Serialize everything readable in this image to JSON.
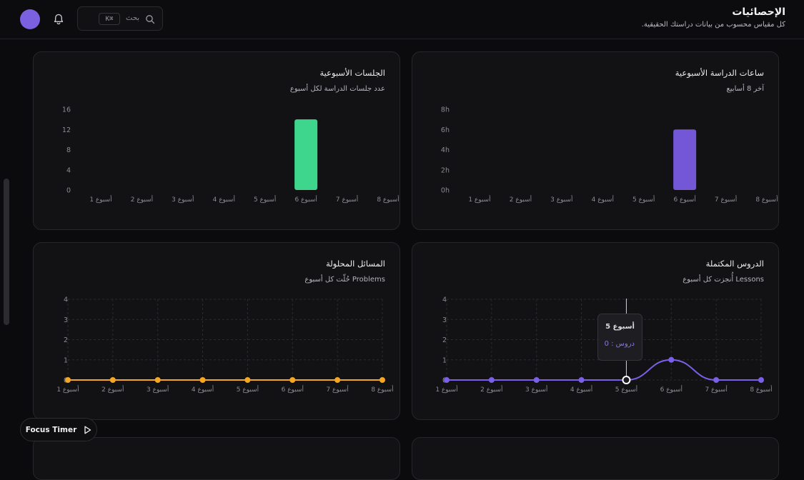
{
  "header": {
    "title": "الإحصائيات",
    "subtitle": "كل مقياس محسوب من بيانات دراستك الحقيقية."
  },
  "search": {
    "placeholder": "بحث",
    "shortcut": "K⌘"
  },
  "focus_timer": {
    "label": "Focus Timer"
  },
  "colors": {
    "purple": "#7457d6",
    "green": "#3dd68c",
    "orange": "#f5a623",
    "line_purple": "#7b5fe6"
  },
  "cards": {
    "study_hours": {
      "title": "ساعات الدراسة الأسبوعية",
      "subtitle": "آخر 8 أسابيع"
    },
    "sessions": {
      "title": "الجلسات الأسبوعية",
      "subtitle": "عدد جلسات الدراسة لكل أسبوع"
    },
    "lessons": {
      "title": "الدروس المكتملة",
      "subtitle": "Lessons أُنجزت كل أسبوع"
    },
    "problems": {
      "title": "المسائل المحلولة",
      "subtitle": "Problems حُلّت كل أسبوع"
    }
  },
  "tooltip": {
    "title": "أسبوع 5",
    "value": "دروس : 0"
  },
  "chart_data": [
    {
      "id": "study_hours",
      "type": "bar",
      "categories": [
        "أسبوع 1",
        "أسبوع 2",
        "أسبوع 3",
        "أسبوع 4",
        "أسبوع 5",
        "أسبوع 6",
        "أسبوع 7",
        "أسبوع 8"
      ],
      "values": [
        0,
        0,
        0,
        0,
        0,
        6,
        0,
        0
      ],
      "yticks": [
        "0h",
        "2h",
        "4h",
        "6h",
        "8h"
      ],
      "ylim": [
        0,
        8
      ],
      "color": "#7457d6"
    },
    {
      "id": "sessions",
      "type": "bar",
      "categories": [
        "أسبوع 1",
        "أسبوع 2",
        "أسبوع 3",
        "أسبوع 4",
        "أسبوع 5",
        "أسبوع 6",
        "أسبوع 7",
        "أسبوع 8"
      ],
      "values": [
        0,
        0,
        0,
        0,
        0,
        14,
        0,
        0
      ],
      "yticks": [
        "0",
        "4",
        "8",
        "12",
        "16"
      ],
      "ylim": [
        0,
        16
      ],
      "color": "#3dd68c"
    },
    {
      "id": "lessons",
      "type": "line",
      "categories": [
        "أسبوع 1",
        "أسبوع 2",
        "أسبوع 3",
        "أسبوع 4",
        "أسبوع 5",
        "أسبوع 6",
        "أسبوع 7",
        "أسبوع 8"
      ],
      "values": [
        0,
        0,
        0,
        0,
        0,
        1,
        0,
        0
      ],
      "yticks": [
        "0",
        "1",
        "2",
        "3",
        "4"
      ],
      "ylim": [
        0,
        4
      ],
      "color": "#7b5fe6",
      "grid": true,
      "active_index": 4
    },
    {
      "id": "problems",
      "type": "line",
      "categories": [
        "أسبوع 1",
        "أسبوع 2",
        "أسبوع 3",
        "أسبوع 4",
        "أسبوع 5",
        "أسبوع 6",
        "أسبوع 7",
        "أسبوع 8"
      ],
      "values": [
        0,
        0,
        0,
        0,
        0,
        0,
        0,
        0
      ],
      "yticks": [
        "0",
        "1",
        "2",
        "3",
        "4"
      ],
      "ylim": [
        0,
        4
      ],
      "color": "#f5a623",
      "grid": true
    }
  ]
}
